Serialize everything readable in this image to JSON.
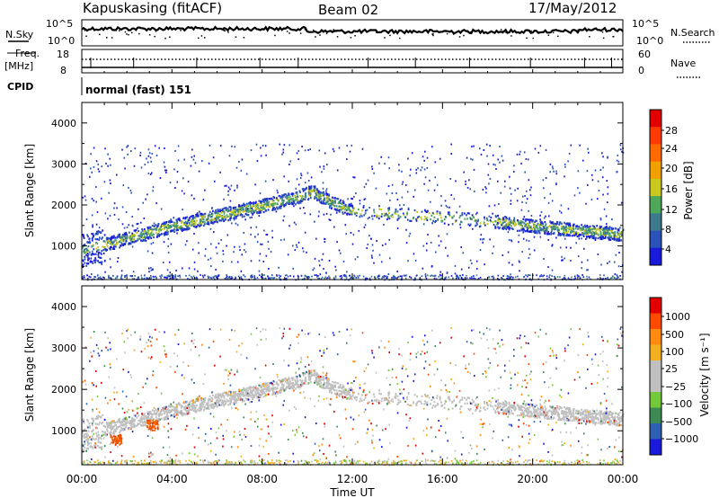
{
  "header": {
    "station": "Kapuskasing (fitACF)",
    "beam": "Beam 02",
    "date": "17/May/2012"
  },
  "top_panels": {
    "nsky_label": "N.Sky",
    "nsearch_label": "N.Search",
    "nsky_ticks": [
      "10^5",
      "10^0"
    ],
    "nsearch_ticks": [
      "10^5",
      "10^0"
    ],
    "freq_label": "Freq.",
    "freq_unit": "[MHz]",
    "freq_ticks": [
      "18",
      "8"
    ],
    "nave_label": "Nave",
    "nave_ticks": [
      "60",
      "0"
    ],
    "cpid_label": "CPID",
    "cpid_value": "normal (fast) 151"
  },
  "colorbars": {
    "power": {
      "label": "Power [dB]",
      "ticks": [
        "28",
        "24",
        "20",
        "16",
        "12",
        "8",
        "4"
      ],
      "colors": [
        "#1a1adb",
        "#2a52b8",
        "#3d7a8e",
        "#4fa85a",
        "#c8c820",
        "#f0a000",
        "#ff6a00",
        "#ff3a00",
        "#e00000"
      ]
    },
    "velocity": {
      "label": "Velocity [m s⁻¹]",
      "ticks": [
        "1000",
        "500",
        "100",
        "25",
        "−25",
        "−100",
        "−500",
        "−1000"
      ],
      "colors": [
        "#1a1adb",
        "#2f5fb0",
        "#3e8a55",
        "#74c93a",
        "#c0c0c0",
        "#c0c0c0",
        "#f2b020",
        "#ff8a10",
        "#ff4a00",
        "#e00000"
      ]
    }
  },
  "chart_data": [
    {
      "type": "heatmap",
      "name": "power",
      "ylabel": "Slant Range [km]",
      "ylim": [
        180,
        4500
      ],
      "yticks": [
        "4000",
        "3000",
        "2000",
        "1000"
      ],
      "xlim": [
        0,
        24
      ],
      "main_echo_band": {
        "x_hours": [
          0,
          1,
          2,
          4,
          6,
          8,
          9.5,
          10.2,
          11,
          11.8,
          18.5,
          20,
          22,
          23,
          24
        ],
        "range_km": [
          900,
          1050,
          1200,
          1500,
          1750,
          2000,
          2200,
          2350,
          2100,
          1900,
          1600,
          1500,
          1400,
          1350,
          1300
        ]
      }
    },
    {
      "type": "heatmap",
      "name": "velocity",
      "xlabel": "Time UT",
      "ylabel": "Slant Range [km]",
      "ylim": [
        180,
        4500
      ],
      "yticks": [
        "4000",
        "3000",
        "2000",
        "1000"
      ],
      "xticks": [
        "00:00",
        "04:00",
        "08:00",
        "12:00",
        "16:00",
        "20:00",
        "00:00"
      ],
      "xlim": [
        0,
        24
      ]
    }
  ]
}
